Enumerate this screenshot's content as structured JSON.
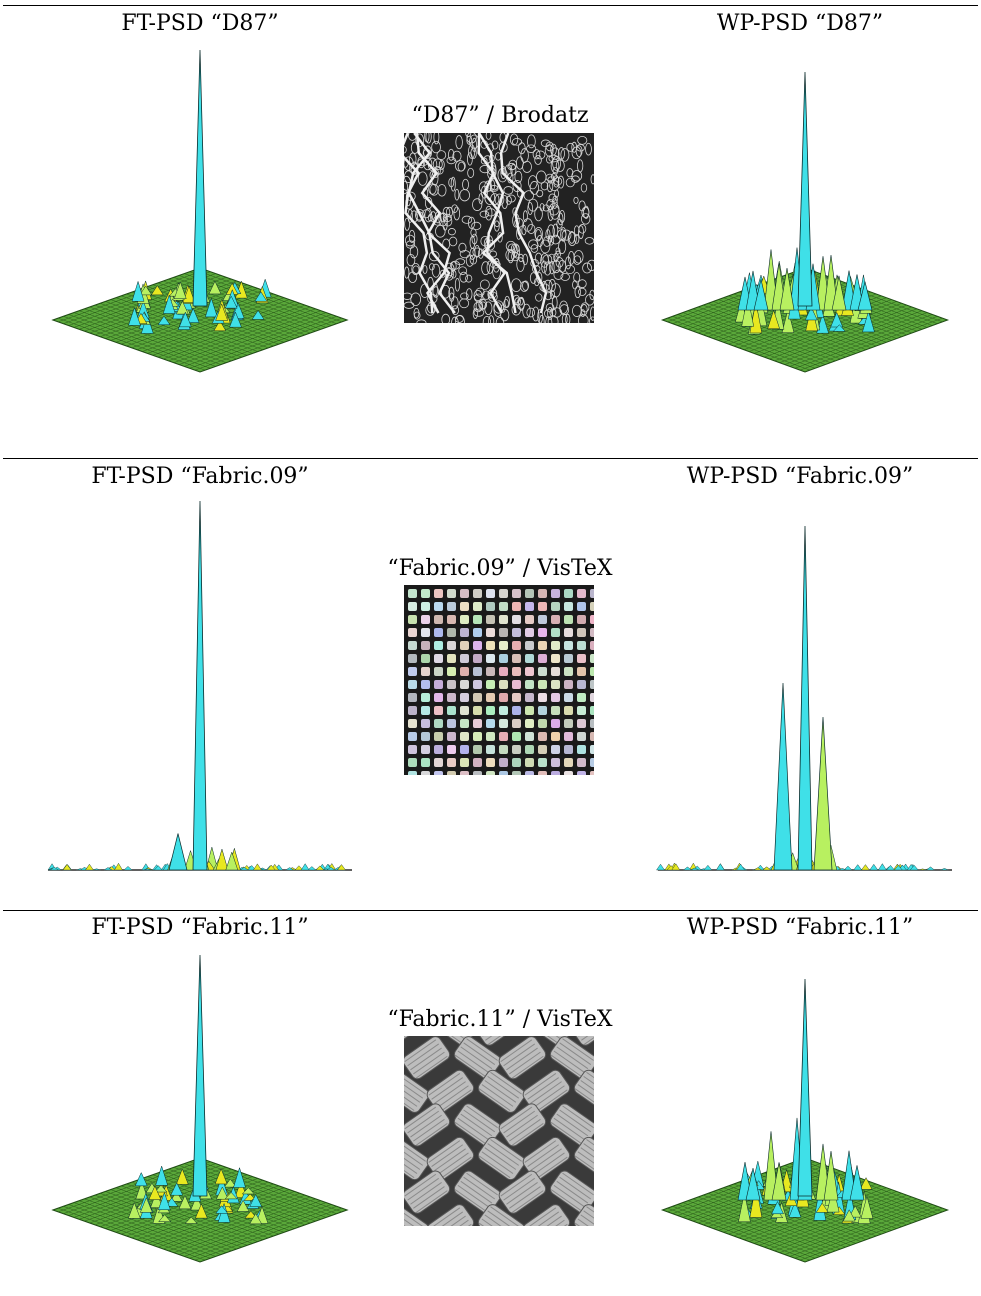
{
  "rows": [
    {
      "ft_label": "FT-PSD “D87”",
      "wp_label": "WP-PSD “D87”",
      "tex_label": "“D87” / Brodatz",
      "ft": {
        "style": "flat-plane",
        "peak": 0.95,
        "secondary": []
      },
      "wp": {
        "style": "flat-plane",
        "peak": 0.9,
        "secondary": [
          0.35,
          0.3,
          0.25
        ]
      },
      "texture": "leaf-veins"
    },
    {
      "ft_label": "FT-PSD “Fabric.09”",
      "wp_label": "WP-PSD “Fabric.09”",
      "tex_label": "“Fabric.09” / VisTeX",
      "ft": {
        "style": "side-view",
        "peak": 1.0,
        "secondary": [
          0.1
        ]
      },
      "wp": {
        "style": "side-view",
        "peak": 1.0,
        "secondary": [
          0.55,
          0.45
        ]
      },
      "texture": "grid-weave"
    },
    {
      "ft_label": "FT-PSD “Fabric.11”",
      "wp_label": "WP-PSD “Fabric.11”",
      "tex_label": "“Fabric.11” / VisTeX",
      "ft": {
        "style": "flat-plane",
        "peak": 0.95,
        "secondary": []
      },
      "wp": {
        "style": "flat-plane",
        "peak": 0.85,
        "secondary": [
          0.4,
          0.3
        ]
      },
      "texture": "basket-weave"
    }
  ],
  "colors": {
    "surface_main": "#3fe0e8",
    "surface_grid": "#5aa83a",
    "surface_alt": "#b8f060",
    "surface_yellow": "#e8e820",
    "rule": "#000000"
  }
}
